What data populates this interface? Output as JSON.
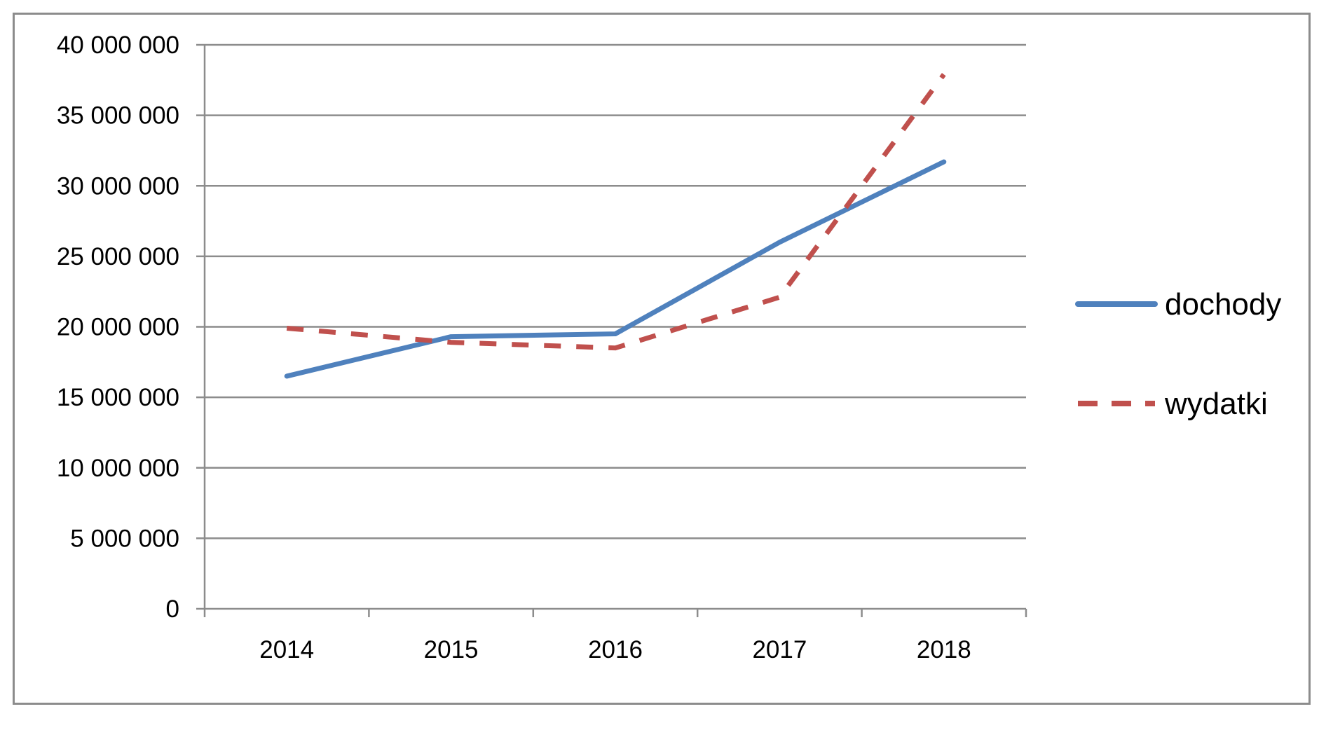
{
  "chart_data": {
    "type": "line",
    "title": "",
    "xlabel": "",
    "ylabel": "",
    "categories": [
      "2014",
      "2015",
      "2016",
      "2017",
      "2018"
    ],
    "ylim": [
      0,
      40000000
    ],
    "yticks": [
      0,
      5000000,
      10000000,
      15000000,
      20000000,
      25000000,
      30000000,
      35000000,
      40000000
    ],
    "ytick_labels": [
      "0",
      "5 000 000",
      "10 000 000",
      "15 000 000",
      "20 000 000",
      "25 000 000",
      "30 000 000",
      "35 000 000",
      "40 000 000"
    ],
    "grid": true,
    "legend_position": "right",
    "series": [
      {
        "name": "dochody",
        "values": [
          16500000,
          19300000,
          19500000,
          26000000,
          31700000
        ],
        "color": "#4f81bd",
        "style": "solid"
      },
      {
        "name": "wydatki",
        "values": [
          19900000,
          18900000,
          18500000,
          22100000,
          37900000
        ],
        "color": "#c0504d",
        "style": "dashed"
      }
    ]
  }
}
